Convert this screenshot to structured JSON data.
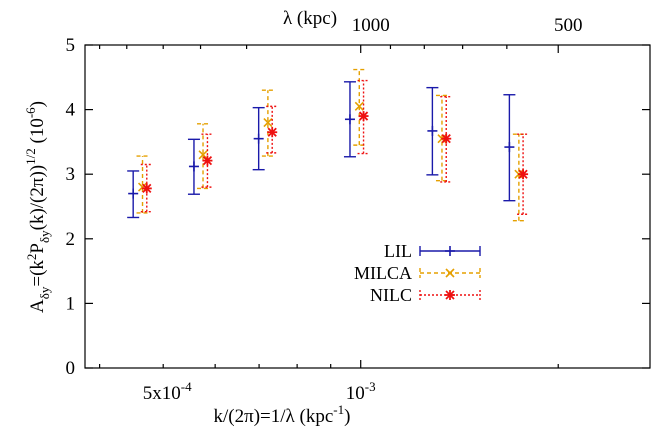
{
  "chart_data": {
    "type": "scatter",
    "title": "",
    "xlabel": "k/(2π)=1/λ (kpc⁻¹)",
    "x2label": "λ (kpc)",
    "ylabel": "Aδy=(k²Pδy(k)/(2π))^1/2 (10⁻⁶)",
    "x_scale": "log",
    "xlim": [
      0.00038,
      0.00276
    ],
    "ylim": [
      0,
      5
    ],
    "yticks": [
      0,
      1,
      2,
      3,
      4,
      5
    ],
    "ytick_labels": [
      "0",
      "1",
      "2",
      "3",
      "4",
      "5"
    ],
    "xticks": [
      0.0005,
      0.001
    ],
    "xtick_labels": [
      "5x10⁻⁴",
      "10⁻³"
    ],
    "x2ticks": [
      0.001,
      0.002
    ],
    "x2tick_labels": [
      "1000",
      "500"
    ],
    "legend_position": "center-right",
    "grid": false,
    "series": [
      {
        "name": "LIL",
        "color": "#1a1aaa",
        "marker": "plus",
        "line_style": "solid",
        "x": [
          0.00045,
          0.000557,
          0.000699,
          0.000963,
          0.001286,
          0.001685
        ],
        "y": [
          2.7,
          3.12,
          3.55,
          3.85,
          3.67,
          3.42
        ],
        "y_low": [
          2.33,
          2.69,
          3.07,
          3.27,
          2.99,
          2.59
        ],
        "y_high": [
          3.05,
          3.54,
          4.03,
          4.43,
          4.34,
          4.23
        ]
      },
      {
        "name": "MILCA",
        "color": "#e5a000",
        "marker": "cross",
        "line_style": "dashed",
        "x": [
          0.000465,
          0.000575,
          0.000722,
          0.000995,
          0.00133,
          0.001742
        ],
        "y": [
          2.8,
          3.3,
          3.8,
          4.05,
          3.55,
          3.0
        ],
        "y_low": [
          2.4,
          2.78,
          3.28,
          3.45,
          2.9,
          2.28
        ],
        "y_high": [
          3.28,
          3.78,
          4.3,
          4.62,
          4.22,
          3.62
        ]
      },
      {
        "name": "NILC",
        "color": "#ee1111",
        "marker": "star",
        "line_style": "dotted",
        "x": [
          0.000472,
          0.000584,
          0.000733,
          0.00101,
          0.00135,
          0.001768
        ],
        "y": [
          2.78,
          3.21,
          3.65,
          3.9,
          3.55,
          3.0
        ],
        "y_low": [
          2.42,
          2.8,
          3.33,
          3.32,
          2.88,
          2.38
        ],
        "y_high": [
          3.15,
          3.62,
          4.05,
          4.45,
          4.2,
          3.62
        ]
      }
    ]
  }
}
